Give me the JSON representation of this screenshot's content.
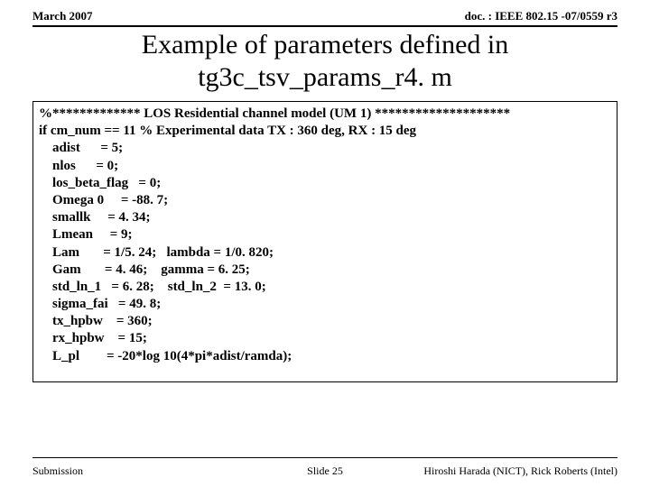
{
  "header": {
    "left": "March 2007",
    "right": "doc. : IEEE 802.15 -07/0559 r3"
  },
  "title": {
    "line1": "Example of parameters defined in",
    "line2": "tg3c_tsv_params_r4. m"
  },
  "code": {
    "l1": "%************* LOS Residential channel model (UM 1) ********************",
    "l2": "if cm_num == 11 % Experimental data TX : 360 deg, RX : 15 deg",
    "l3": "    adist      = 5;",
    "l4": "    nlos      = 0;",
    "l5": "    los_beta_flag   = 0;",
    "l6": "    Omega 0     = -88. 7;",
    "l7": "    smallk     = 4. 34;",
    "l8": "    Lmean     = 9;",
    "l9": "    Lam       = 1/5. 24;   lambda = 1/0. 820;",
    "l10": "    Gam       = 4. 46;    gamma = 6. 25;",
    "l11": "    std_ln_1   = 6. 28;    std_ln_2  = 13. 0;",
    "l12": "    sigma_fai   = 49. 8;",
    "l13": "    tx_hpbw    = 360;",
    "l14": "    rx_hpbw    = 15;",
    "l15": "    L_pl        = -20*log 10(4*pi*adist/ramda);"
  },
  "footer": {
    "left": "Submission",
    "center": "Slide 25",
    "right": "Hiroshi Harada (NICT), Rick Roberts (Intel)"
  }
}
